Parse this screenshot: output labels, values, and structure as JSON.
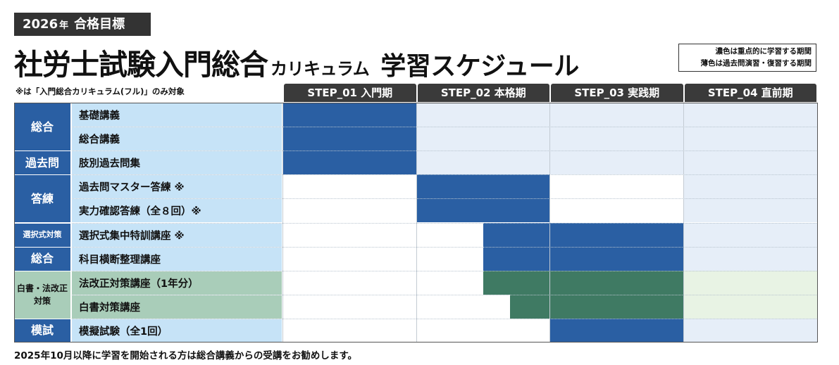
{
  "header": {
    "badge_year": "2026",
    "badge_nen": "年",
    "badge_goal": "合格目標",
    "title_main": "社労士試験入門総合",
    "title_sub": "カリキュラム",
    "title_end": "学習スケジュール",
    "legend_line1": "濃色は重点的に学習する期間",
    "legend_line2": "薄色は過去問演習・復習する期間",
    "note": "※は「入門総合カリキュラム(フル)」のみ対象"
  },
  "steps": [
    {
      "label": "STEP_01 入門期"
    },
    {
      "label": "STEP_02 本格期"
    },
    {
      "label": "STEP_03 実践期"
    },
    {
      "label": "STEP_04 直前期"
    }
  ],
  "categories": [
    {
      "label": "総合",
      "rows": [
        0,
        1
      ],
      "style": "blue"
    },
    {
      "label": "過去問",
      "rows": [
        2,
        2
      ],
      "style": "blue"
    },
    {
      "label": "答練",
      "rows": [
        3,
        4
      ],
      "style": "blue"
    },
    {
      "label": "選択式対策",
      "rows": [
        5,
        5
      ],
      "style": "blue-small"
    },
    {
      "label": "総合",
      "rows": [
        6,
        6
      ],
      "style": "blue"
    },
    {
      "label": "白書・法改正\n対策",
      "rows": [
        7,
        8
      ],
      "style": "green"
    },
    {
      "label": "模試",
      "rows": [
        9,
        9
      ],
      "style": "blue"
    }
  ],
  "courses": [
    {
      "label": "基礎講義",
      "style": "blue",
      "dark": [
        0.0,
        1.0
      ],
      "light": [
        1.0,
        4.0
      ]
    },
    {
      "label": "総合講義",
      "style": "blue",
      "dark": [
        0.0,
        1.0
      ],
      "light": [
        1.0,
        4.0
      ]
    },
    {
      "label": "肢別過去問集",
      "style": "blue",
      "dark": [
        0.0,
        1.0
      ],
      "light": [
        1.0,
        4.0
      ]
    },
    {
      "label": "過去問マスター答練 ※",
      "style": "blue",
      "dark": [
        1.0,
        2.0
      ],
      "light": [
        3.0,
        4.0
      ]
    },
    {
      "label": "実力確認答練（全８回）※",
      "style": "blue",
      "dark": [
        1.0,
        2.0
      ],
      "light": [
        3.0,
        4.0
      ]
    },
    {
      "label": "選択式集中特訓講座 ※",
      "style": "blue",
      "dark": [
        1.5,
        3.0
      ],
      "light": [
        3.0,
        4.0
      ]
    },
    {
      "label": "科目横断整理講座",
      "style": "blue",
      "dark": [
        1.5,
        3.0
      ],
      "light": [
        3.0,
        4.0
      ]
    },
    {
      "label": "法改正対策講座（1年分）",
      "style": "green",
      "dark": [
        1.5,
        3.0
      ],
      "light": [
        3.0,
        4.0
      ]
    },
    {
      "label": "白書対策講座",
      "style": "green",
      "dark": [
        1.7,
        3.0
      ],
      "light": [
        3.0,
        4.0
      ]
    },
    {
      "label": "模擬試験（全1回）",
      "style": "blue",
      "dark": [
        2.0,
        3.0
      ],
      "light": [
        3.0,
        4.0
      ]
    }
  ],
  "colors": {
    "blue_dark": "#2a5fa3",
    "blue_light": "#e6eef8",
    "green_dark": "#3f7a63",
    "green_light": "#e8f3e4",
    "label_blue": "#c6e3f7",
    "label_green": "#a9cdb9"
  },
  "footer": {
    "text": "2025年10月以降に学習を開始される方は総合講義からの受講をお勧めします。"
  }
}
